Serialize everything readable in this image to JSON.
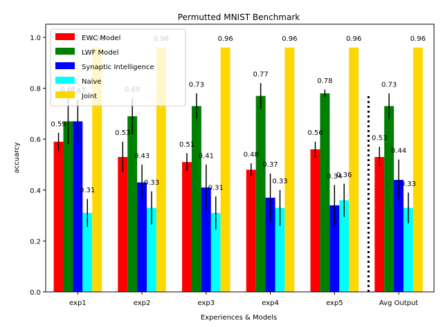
{
  "chart_data": {
    "type": "bar",
    "title": "Permutted MNIST Benchmark",
    "xlabel": "Experiences & Models",
    "ylabel": "accuarcy",
    "categories": [
      "exp1",
      "exp2",
      "exp3",
      "exp4",
      "exp5",
      "Avg Output"
    ],
    "ylim": [
      0,
      1.0
    ],
    "yticks": [
      0.0,
      0.2,
      0.4,
      0.6,
      0.8,
      1.0
    ],
    "ytick_labels": [
      "0.0",
      "0.2",
      "0.4",
      "0.6",
      "0.8",
      "1.0"
    ],
    "grid": false,
    "legend_position": "top-left",
    "series": [
      {
        "name": "EWC Model",
        "color": "#ff0000",
        "values": [
          0.59,
          0.53,
          0.51,
          0.48,
          0.56,
          0.53
        ],
        "errors": [
          0.035,
          0.06,
          0.035,
          0.025,
          0.03,
          0.04
        ],
        "labels": [
          "0.59",
          "0.53",
          "0.51",
          "0.48",
          "0.56",
          "0.53"
        ]
      },
      {
        "name": "LWF Model",
        "color": "#008000",
        "values": [
          0.67,
          0.69,
          0.73,
          0.77,
          0.78,
          0.73
        ],
        "errors": [
          0.09,
          0.07,
          0.05,
          0.05,
          0.015,
          0.05
        ],
        "labels": [
          "0.67",
          "0.69",
          "0.73",
          "0.77",
          "0.78",
          "0.73"
        ]
      },
      {
        "name": "Synaptic Intelligence",
        "color": "#0000ff",
        "values": [
          0.67,
          0.43,
          0.41,
          0.37,
          0.34,
          0.44
        ],
        "errors": [
          0.085,
          0.07,
          0.09,
          0.095,
          0.08,
          0.08
        ],
        "labels": [
          "0.67",
          "0.43",
          "0.41",
          "0.37",
          "0.34",
          "0.44"
        ]
      },
      {
        "name": "Naive",
        "color": "#00ffff",
        "values": [
          0.31,
          0.33,
          0.31,
          0.33,
          0.36,
          0.33
        ],
        "errors": [
          0.055,
          0.065,
          0.065,
          0.07,
          0.065,
          0.06
        ],
        "labels": [
          "0.31",
          "0.33",
          "0.31",
          "0.33",
          "0.36",
          "0.33"
        ]
      },
      {
        "name": "Joint",
        "color": "#ffd700",
        "values": [
          0.96,
          0.96,
          0.96,
          0.96,
          0.96,
          0.96
        ],
        "errors": [
          0,
          0,
          0,
          0,
          0,
          0
        ],
        "labels": [
          "0.96",
          "0.96",
          "0.96",
          "0.96",
          "0.96",
          "0.96"
        ]
      }
    ],
    "separator": {
      "style": "dotted",
      "color": "#000000",
      "between_categories": [
        4,
        5
      ],
      "ymax": 0.78
    }
  }
}
